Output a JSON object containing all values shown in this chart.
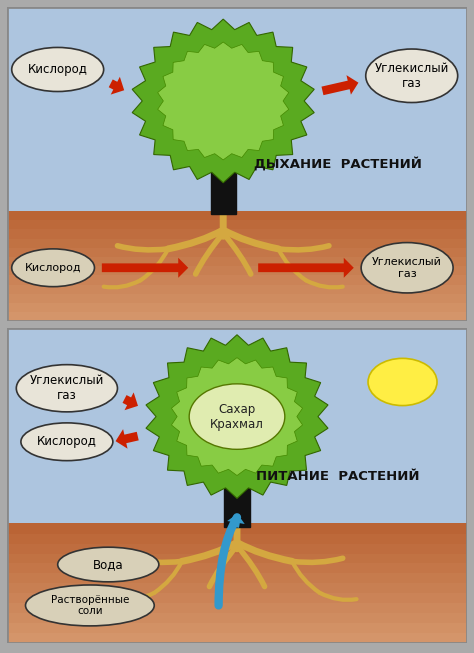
{
  "fig_width": 4.74,
  "fig_height": 6.53,
  "dpi": 100,
  "sky_color_top": "#c5d8ea",
  "sky_color": "#adc5df",
  "ground_color_top": "#d4956a",
  "ground_color_bot": "#b86030",
  "border_color": "#888888",
  "arrow_color": "#cc2000",
  "blue_arrow_color": "#3399cc",
  "tree_trunk_color": "#111111",
  "tree_foliage_outer": "#5aaa20",
  "tree_foliage_inner": "#88cc44",
  "root_color": "#d4a840",
  "sun_color": "#ffee44",
  "sun_edge": "#ccbb00",
  "ellipse_fill_sky": "#e8e4d8",
  "ellipse_fill_ground": "#d8d0b8",
  "sugar_fill": "#e0ecb0",
  "panel1_title": "ДЫХАНИЕ  РАСТЕНИЙ",
  "panel2_title": "ПИТАНИЕ  РАСТЕНИЙ",
  "label_kislorod": "Кислород",
  "label_co2": "Углекислый\nгаз",
  "label_uglek": "Углекислый\nгаз",
  "label_sakhar": "Сахар\nКрахмал",
  "label_voda": "Вода",
  "label_soli": "Растворённые\nсоли"
}
